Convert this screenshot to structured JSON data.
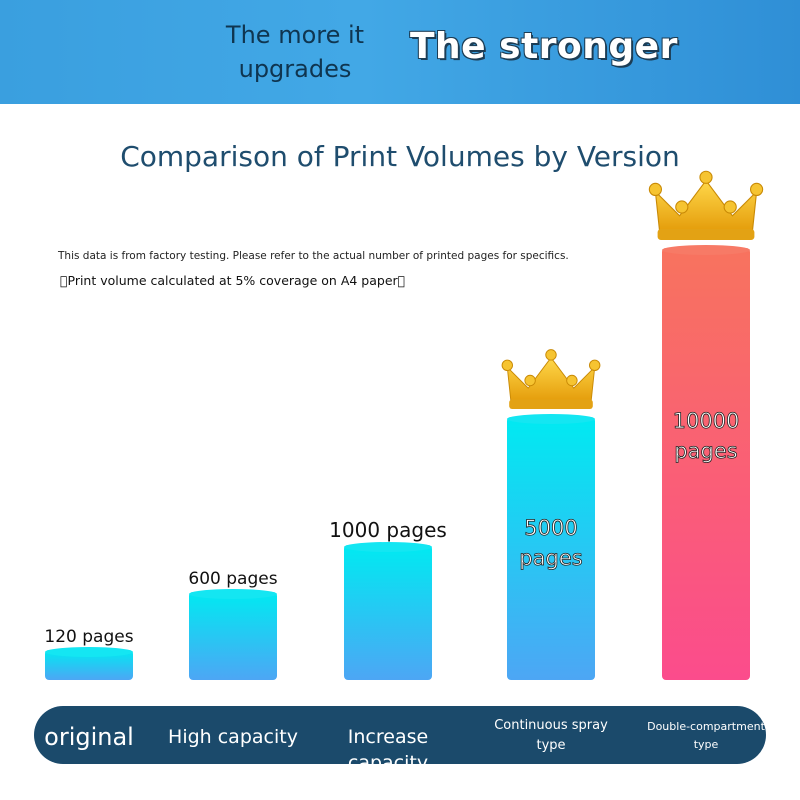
{
  "header": {
    "left_text": "The more it upgrades",
    "right_text": "The stronger"
  },
  "notes": {
    "line1": "This data is from factory testing. Please refer to the actual number of printed pages for specifics.",
    "line2": "\u0000Print volume calculated at 5% coverage on A4 paper\u0000"
  },
  "colors": {
    "banner": "#3a9fdf",
    "axis_bar": "#1b4a6b",
    "cyan_top": "#00e5f0",
    "blue_bottom": "#4fa8f2",
    "pink_top": "#f87060",
    "pink_bottom": "#fb4f8a",
    "crown": "#f2b81a"
  },
  "chart_data": {
    "type": "bar",
    "title": "Comparison of Print Volumes by Version",
    "categories": [
      "original",
      "High capacity",
      "Increase capacity",
      "Continuous spray type",
      "Double-compartment type"
    ],
    "values": [
      120,
      600,
      1000,
      5000,
      10000
    ],
    "data_labels": [
      "120 pages",
      "600 pages",
      "1000 pages",
      "5000 pages",
      "10000 pages"
    ],
    "crowns_on": [
      "Continuous spray type",
      "Double-compartment type"
    ],
    "grid": false,
    "legend": "none"
  }
}
